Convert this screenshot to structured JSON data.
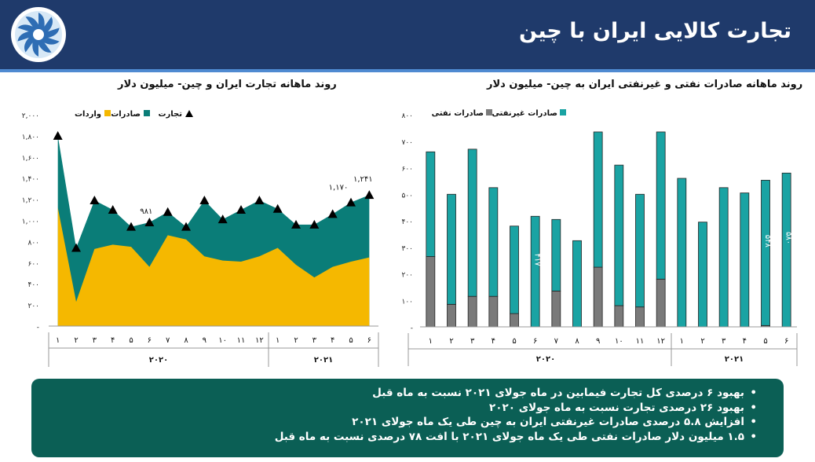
{
  "header": {
    "title": "تجارت کالایی ایران با چین"
  },
  "colors": {
    "header_bg": "#1f3a6b",
    "imports": "#f5b800",
    "exports": "#0a7d78",
    "trade_marker": "#000000",
    "oil_exports": "#7a7a7a",
    "nonoil_exports": "#1aa3a3",
    "summary_bg": "#0b5f55"
  },
  "chart_data": [
    {
      "type": "area",
      "title": "روند ماهانه تجارت ایران و چین- میلیون دلار",
      "legend": {
        "trade": "تجارت",
        "exports": "صادرات",
        "imports": "واردات"
      },
      "x": [
        "۱",
        "۲",
        "۳",
        "۴",
        "۵",
        "۶",
        "۷",
        "۸",
        "۹",
        "۱۰",
        "۱۱",
        "۱۲",
        "۱",
        "۲",
        "۳",
        "۴",
        "۵",
        "۶"
      ],
      "year_groups": [
        {
          "label": "۲۰۲۰",
          "count": 12
        },
        {
          "label": "۲۰۲۱",
          "count": 6
        }
      ],
      "series": [
        {
          "name": "واردات",
          "values": [
            1120,
            230,
            730,
            770,
            750,
            560,
            860,
            820,
            660,
            620,
            610,
            660,
            740,
            580,
            460,
            560,
            610,
            650
          ]
        },
        {
          "name": "تجارت",
          "values": [
            1800,
            740,
            1190,
            1100,
            940,
            981,
            1080,
            940,
            1190,
            1010,
            1100,
            1190,
            1110,
            960,
            960,
            1060,
            1170,
            1241
          ]
        }
      ],
      "yticks": [
        "-",
        "۲۰۰",
        "۴۰۰",
        "۶۰۰",
        "۸۰۰",
        "۱,۰۰۰",
        "۱,۲۰۰",
        "۱,۴۰۰",
        "۱,۶۰۰",
        "۱,۸۰۰",
        "۲,۰۰۰"
      ],
      "ylim": [
        0,
        2000
      ],
      "annotations": [
        "۹۸۱",
        "۱,۱۷۰",
        "۱,۲۴۱"
      ],
      "legend_position": "top"
    },
    {
      "type": "bar",
      "title": "روند ماهانه صادرات نفتی و غیرنفتی ایران به چین- میلیون دلار",
      "legend": {
        "nonoil": "صادرات غیرنفتی",
        "oil": "صادرات نفتی"
      },
      "categories": [
        "۱",
        "۲",
        "۳",
        "۴",
        "۵",
        "۶",
        "۷",
        "۸",
        "۹",
        "۱۰",
        "۱۱",
        "۱۲",
        "۱",
        "۲",
        "۳",
        "۴",
        "۵",
        "۶"
      ],
      "year_groups": [
        {
          "label": "۲۰۲۰",
          "count": 12
        },
        {
          "label": "۲۰۲۱",
          "count": 6
        }
      ],
      "series": [
        {
          "name": "صادرات نفتی",
          "values": [
            265,
            85,
            115,
            115,
            50,
            0,
            135,
            0,
            225,
            80,
            75,
            180,
            0,
            0,
            0,
            0,
            5,
            0
          ]
        },
        {
          "name": "صادرات غیرنفتی",
          "values": [
            395,
            415,
            555,
            410,
            330,
            417,
            270,
            325,
            510,
            530,
            425,
            555,
            560,
            395,
            525,
            505,
            548,
            580
          ]
        }
      ],
      "yticks": [
        "-",
        "۱۰۰",
        "۲۰۰",
        "۳۰۰",
        "۴۰۰",
        "۵۰۰",
        "۶۰۰",
        "۷۰۰",
        "۸۰۰"
      ],
      "ylim": [
        0,
        800
      ],
      "data_labels": [
        "۴۱۷",
        "۵۴۸",
        "۵۸۰"
      ],
      "legend_position": "top"
    }
  ],
  "summary": {
    "items": [
      "بهبود ۶ درصدی کل تجارت فیمابین در ماه جولای ۲۰۲۱ نسبت به ماه قبل",
      "بهبود ۲۶ درصدی تجارت نسبت به ماه جولای ۲۰۲۰",
      "افزایش ۵.۸ درصدی صادرات غیرنفتی ایران به چین طی یک ماه جولای ۲۰۲۱",
      "۱.۵ میلیون دلار صادرات نفتی طی یک ماه جولای ۲۰۲۱ با افت ۷۸ درصدی نسبت به ماه قبل"
    ]
  }
}
